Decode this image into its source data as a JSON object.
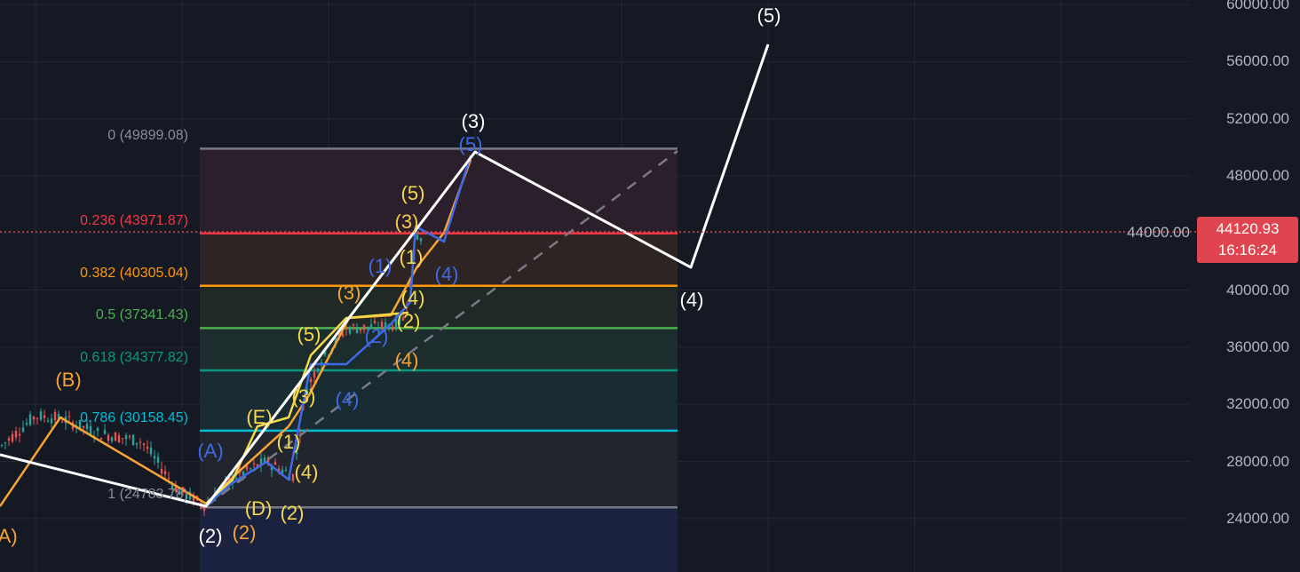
{
  "chart_data": {
    "type": "candlestick-with-drawings",
    "title": "",
    "y_axis": {
      "ticks": [
        "60000.00",
        "56000.00",
        "52000.00",
        "48000.00",
        "44000.00",
        "40000.00",
        "36000.00",
        "32000.00",
        "28000.00",
        "24000.00"
      ],
      "ylim": [
        22000,
        60300
      ]
    },
    "current_price": {
      "value": "44120.93",
      "countdown": "16:16:24",
      "color": "#e0454f"
    },
    "fib_retracement": [
      {
        "level": "0",
        "price": 49899.08,
        "label": "0 (49899.08)",
        "color": "#787b86",
        "fill": "#2b1f2b"
      },
      {
        "level": "0.236",
        "price": 43971.87,
        "label": "0.236 (43971.87)",
        "color": "#f23645",
        "fill": "#2e2424"
      },
      {
        "level": "0.382",
        "price": 40305.04,
        "label": "0.382 (40305.04)",
        "color": "#ff9800",
        "fill": "#1f2a27"
      },
      {
        "level": "0.5",
        "price": 37341.43,
        "label": "0.5 (37341.43)",
        "color": "#4caf50",
        "fill": "#1d2c2c"
      },
      {
        "level": "0.618",
        "price": 34377.82,
        "label": "0.618 (34377.82)",
        "color": "#089981",
        "fill": "#1a2c33"
      },
      {
        "level": "0.786",
        "price": 30158.45,
        "label": "0.786 (30158.45)",
        "color": "#00bcd4",
        "fill": "#22252d"
      },
      {
        "level": "1",
        "price": 24783.78,
        "label": "1 (24783.78)",
        "color": "#787b86",
        "fill": "#1a2240"
      }
    ],
    "wave_labels": [
      {
        "text": "(5)",
        "color": "#ffffff"
      },
      {
        "text": "(3)",
        "color": "#ffffff"
      },
      {
        "text": "(4)",
        "color": "#ffffff"
      },
      {
        "text": "(2)",
        "color": "#ffffff"
      },
      {
        "text": "(B)",
        "color": "#f7a336"
      },
      {
        "text": "(A)",
        "color": "#f7a336"
      },
      {
        "text": "(3)",
        "color": "#f7a336"
      },
      {
        "text": "(4)",
        "color": "#f7a336"
      },
      {
        "text": "(2)",
        "color": "#f7a336"
      },
      {
        "text": "(3)",
        "color": "#f7c948"
      },
      {
        "text": "(5)",
        "color": "#f5d94a"
      },
      {
        "text": "(1)",
        "color": "#f5d94a"
      },
      {
        "text": "(4)",
        "color": "#f5d94a"
      },
      {
        "text": "(2)",
        "color": "#f5d94a"
      },
      {
        "text": "(5)",
        "color": "#f5d94a"
      },
      {
        "text": "(3)",
        "color": "#f5d94a"
      },
      {
        "text": "(E)",
        "color": "#f5d94a"
      },
      {
        "text": "(1)",
        "color": "#f5d94a"
      },
      {
        "text": "(4)",
        "color": "#f5d94a"
      },
      {
        "text": "(2)",
        "color": "#f5d94a"
      },
      {
        "text": "(D)",
        "color": "#f5d94a"
      },
      {
        "text": "(4)",
        "color": "#3d6ae8"
      },
      {
        "text": "(1)",
        "color": "#3d6ae8"
      },
      {
        "text": "(4)",
        "color": "#3d6ae8"
      },
      {
        "text": "(A)",
        "color": "#3d6ae8"
      },
      {
        "text": "(2)",
        "color": "#3d6ae8"
      },
      {
        "text": "(5)",
        "color": "#3d6ae8"
      }
    ],
    "colors": {
      "background": "#151924",
      "grid": "#232733",
      "up": "#26a69a",
      "down": "#ef5350",
      "main_wave": "#ffffff",
      "orange_wave": "#f7a336",
      "yellow_wave": "#f5d94a",
      "blue_wave": "#3d6ae8"
    },
    "grid": true
  }
}
